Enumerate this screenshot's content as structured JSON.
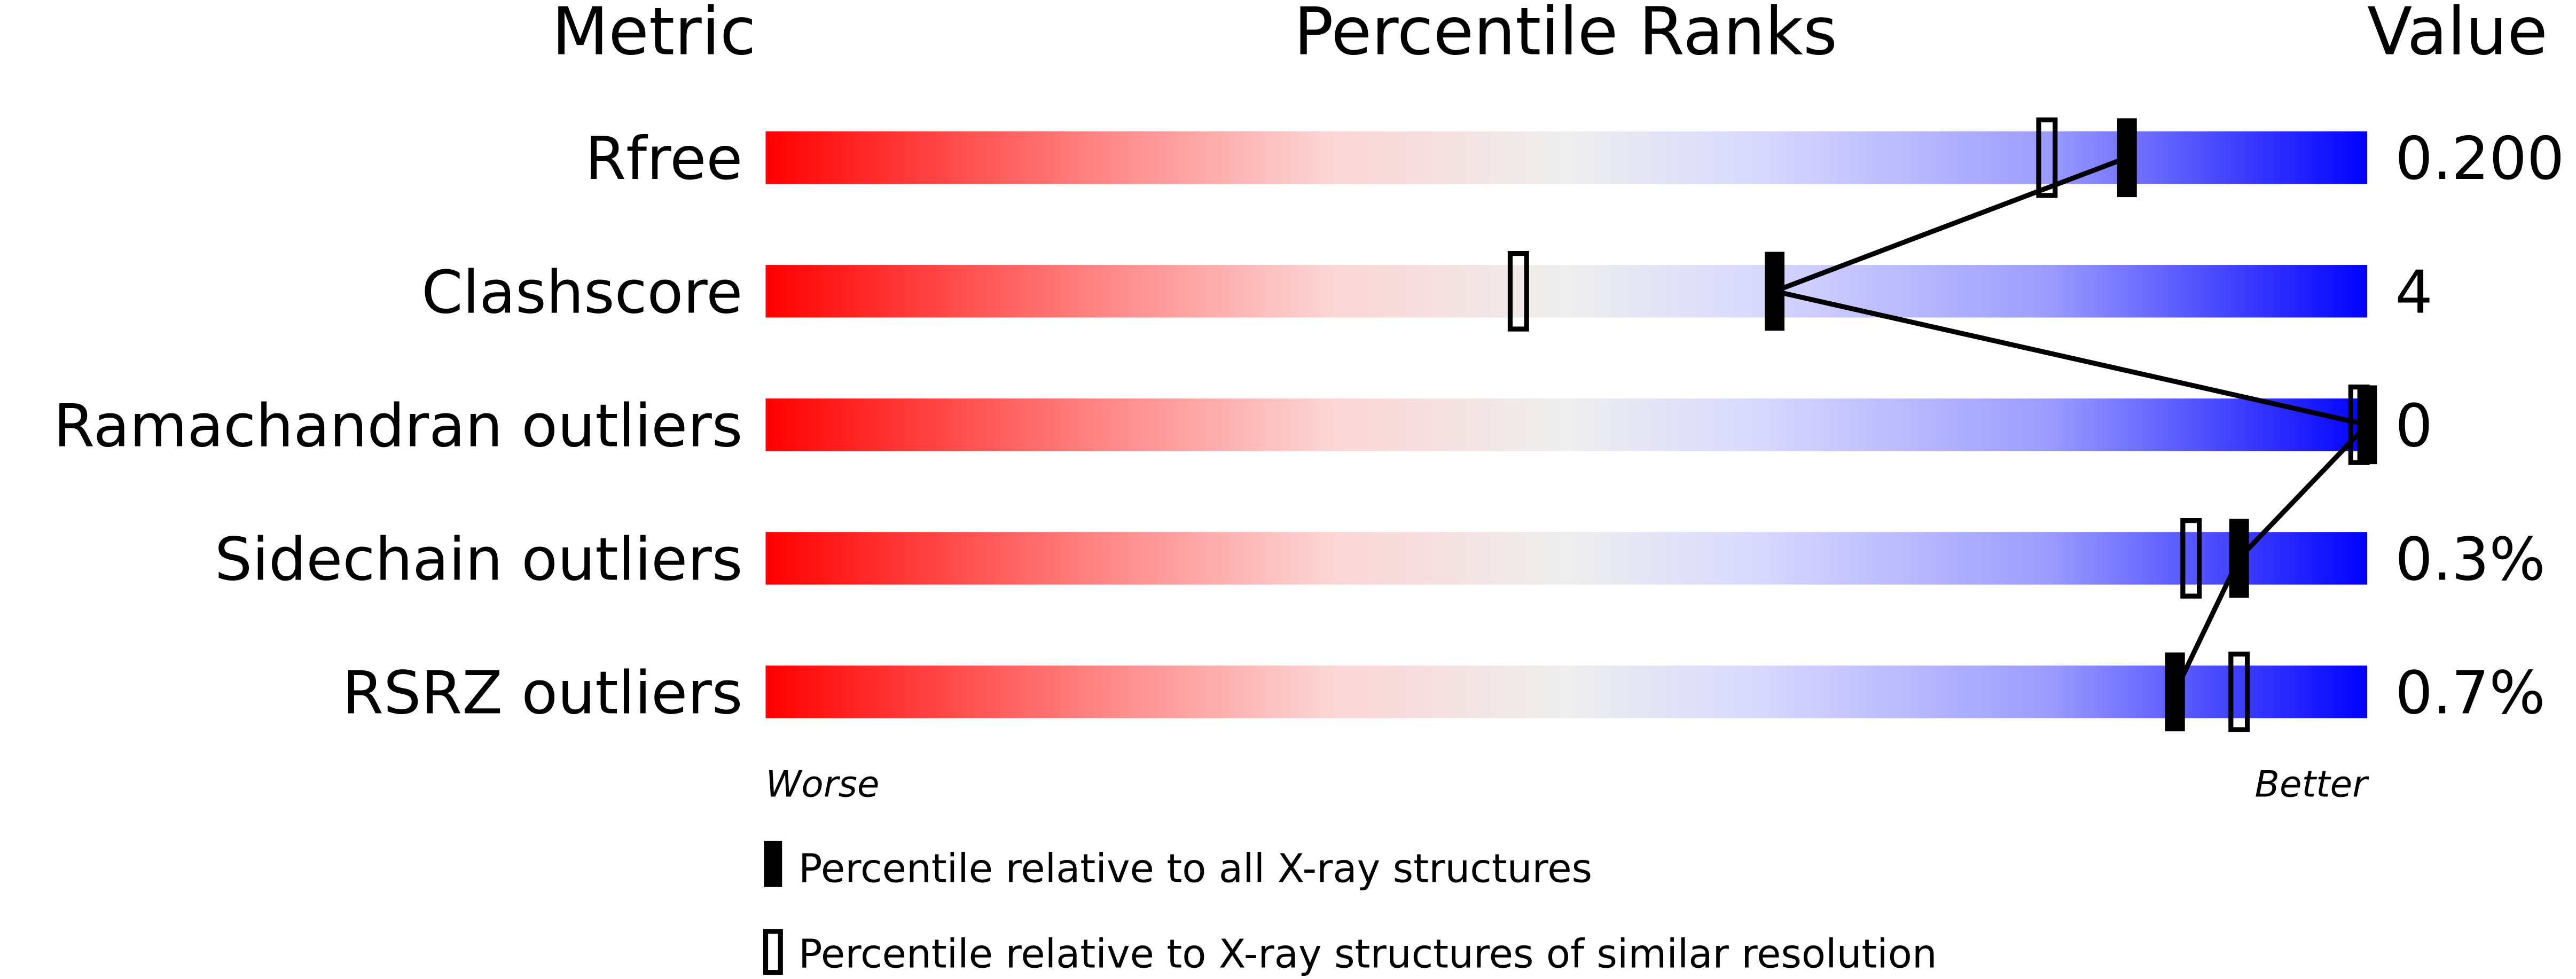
{
  "chart_data": {
    "type": "percentile-bar",
    "headers": {
      "metric": "Metric",
      "ranks": "Percentile Ranks",
      "value": "Value"
    },
    "xlim": [
      0,
      100
    ],
    "axis_left_label": "Worse",
    "axis_right_label": "Better",
    "metrics": [
      {
        "name": "Rfree",
        "value": "0.200",
        "percentile_all": 85,
        "percentile_similar": 80
      },
      {
        "name": "Clashscore",
        "value": "4",
        "percentile_all": 63,
        "percentile_similar": 47
      },
      {
        "name": "Ramachandran outliers",
        "value": "0",
        "percentile_all": 100,
        "percentile_similar": 100
      },
      {
        "name": "Sidechain outliers",
        "value": "0.3%",
        "percentile_all": 92,
        "percentile_similar": 89
      },
      {
        "name": "RSRZ outliers",
        "value": "0.7%",
        "percentile_all": 88,
        "percentile_similar": 92
      }
    ],
    "legend": [
      {
        "marker": "filled",
        "label": "Percentile relative to all X-ray structures"
      },
      {
        "marker": "open",
        "label": "Percentile relative to X-ray structures of similar resolution"
      }
    ],
    "colors": {
      "worse": "#ff0000",
      "middle": "#eeeeee",
      "better": "#0000ff",
      "marker": "#000000"
    }
  }
}
